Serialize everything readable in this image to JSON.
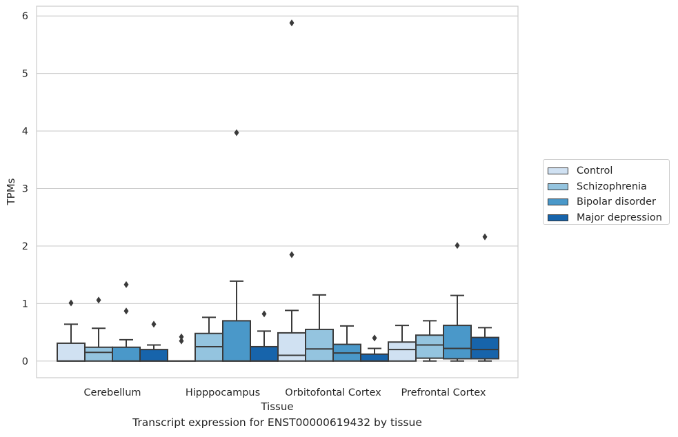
{
  "chart_data": {
    "type": "box",
    "xlabel": "Tissue",
    "ylabel": "TPMs",
    "ylim": [
      -0.29,
      6.17
    ],
    "yticks": [
      0,
      1,
      2,
      3,
      4,
      5,
      6
    ],
    "grid": "horizontal",
    "legend_position": "right",
    "categories": [
      "Cerebellum",
      "Hipppocampus",
      "Orbitofontal Cortex",
      "Prefrontal Cortex"
    ],
    "series": [
      {
        "name": "Control",
        "color": "#d0e1f2",
        "boxes": [
          {
            "q1": 0.0,
            "median": 0.0,
            "q3": 0.31,
            "whislo": 0.0,
            "whishi": 0.64,
            "fliers": [
              1.01
            ]
          },
          {
            "q1": 0.0,
            "median": 0.0,
            "q3": 0.0,
            "whislo": 0.0,
            "whishi": 0.0,
            "fliers": []
          },
          {
            "q1": 0.0,
            "median": 0.1,
            "q3": 0.49,
            "whislo": 0.0,
            "whishi": 0.88,
            "fliers": [
              1.85
            ]
          },
          {
            "q1": 0.0,
            "median": 0.2,
            "q3": 0.33,
            "whislo": 0.0,
            "whishi": 0.62,
            "fliers": []
          }
        ]
      },
      {
        "name": "Schizophrenia",
        "color": "#94c4df",
        "boxes": [
          {
            "q1": 0.0,
            "median": 0.15,
            "q3": 0.24,
            "whislo": 0.0,
            "whishi": 0.57,
            "fliers": [
              1.06
            ]
          },
          {
            "q1": 0.0,
            "median": 0.25,
            "q3": 0.48,
            "whislo": 0.0,
            "whishi": 0.76,
            "fliers": []
          },
          {
            "q1": 0.0,
            "median": 0.21,
            "q3": 0.55,
            "whislo": 0.0,
            "whishi": 1.15,
            "fliers": []
          },
          {
            "q1": 0.05,
            "median": 0.28,
            "q3": 0.45,
            "whislo": 0.0,
            "whishi": 0.7,
            "fliers": []
          }
        ]
      },
      {
        "name": "Bipolar disorder",
        "color": "#4a98c9",
        "boxes": [
          {
            "q1": 0.0,
            "median": 0.0,
            "q3": 0.24,
            "whislo": 0.0,
            "whishi": 0.37,
            "fliers": [
              0.87,
              1.33
            ]
          },
          {
            "q1": 0.0,
            "median": 0.0,
            "q3": 0.7,
            "whislo": 0.0,
            "whishi": 1.39,
            "fliers": [
              3.97
            ]
          },
          {
            "q1": 0.0,
            "median": 0.14,
            "q3": 0.29,
            "whislo": 0.0,
            "whishi": 0.61,
            "fliers": []
          },
          {
            "q1": 0.04,
            "median": 0.22,
            "q3": 0.62,
            "whislo": 0.0,
            "whishi": 1.14,
            "fliers": [
              2.01
            ]
          }
        ]
      },
      {
        "name": "Major depression",
        "color": "#1764ab",
        "boxes": [
          {
            "q1": 0.0,
            "median": 0.0,
            "q3": 0.2,
            "whislo": 0.0,
            "whishi": 0.28,
            "fliers": [
              0.64
            ]
          },
          {
            "q1": 0.0,
            "median": 0.0,
            "q3": 0.25,
            "whislo": 0.0,
            "whishi": 0.52,
            "fliers": [
              0.82
            ]
          },
          {
            "q1": 0.0,
            "median": 0.0,
            "q3": 0.12,
            "whislo": 0.0,
            "whishi": 0.22,
            "fliers": [
              0.4
            ]
          },
          {
            "q1": 0.04,
            "median": 0.2,
            "q3": 0.41,
            "whislo": 0.0,
            "whishi": 0.58,
            "fliers": [
              2.16
            ]
          }
        ]
      }
    ],
    "extra_fliers": [
      {
        "category": 1,
        "series": 0,
        "values": [
          0.35,
          0.42
        ]
      },
      {
        "category": 2,
        "series": 0,
        "values": [
          5.88
        ]
      }
    ]
  },
  "figure_title": "Transcript expression for ENST00000619432 by tissue"
}
